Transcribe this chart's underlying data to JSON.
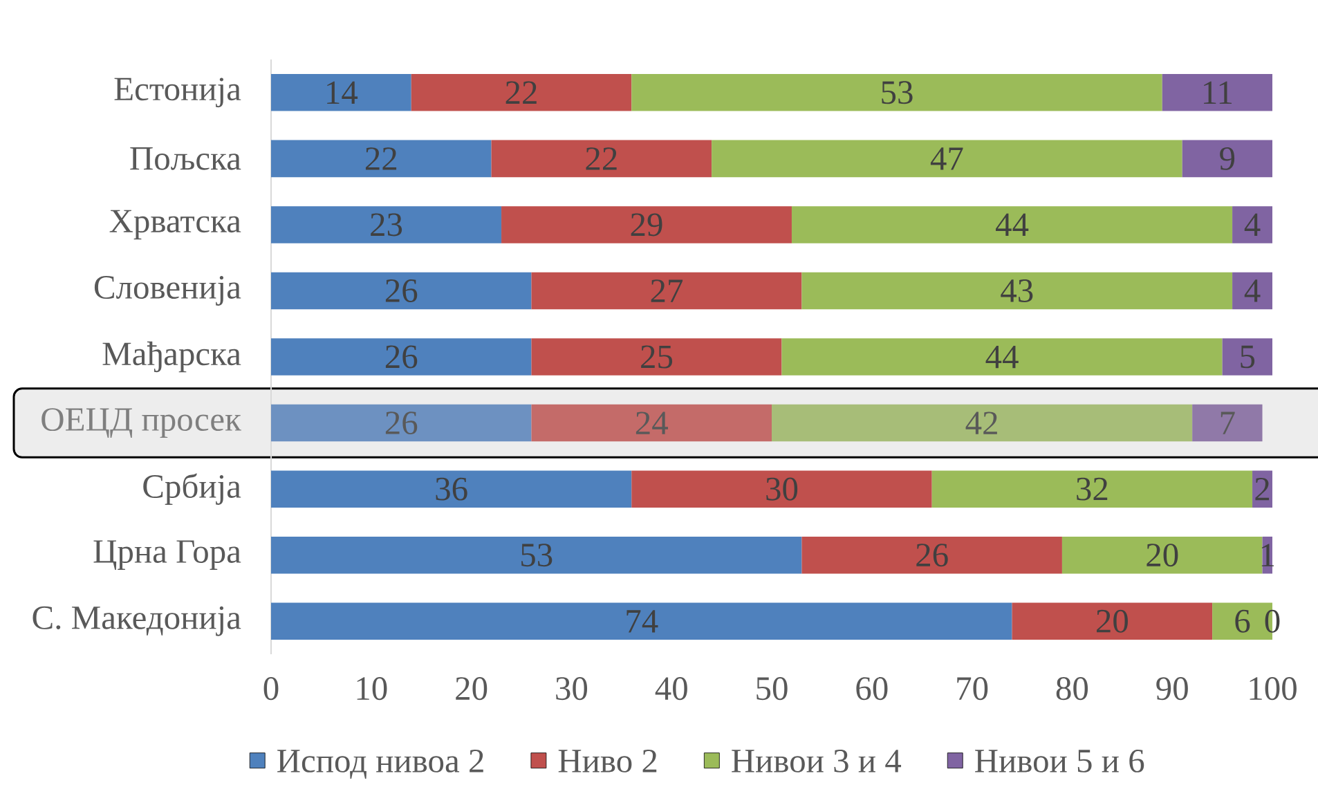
{
  "chart_data": {
    "type": "bar",
    "orientation": "horizontal",
    "stacked": true,
    "categories": [
      "Естонија",
      "Пољска",
      "Хрватска",
      "Словенија",
      "Мађарска",
      "ОЕЦД просек",
      "Србија",
      "Црна Гора",
      "С. Македонија"
    ],
    "series": [
      {
        "name": "Испод нивоа 2",
        "color": "#4f81bd",
        "colors": [
          "#4f81bd",
          "#4f81bd",
          "#4f81bd",
          "#4f81bd",
          "#4f81bd",
          "#6d91c1",
          "#4f81bd",
          "#4f81bd",
          "#4f81bd"
        ],
        "values": [
          14,
          22,
          23,
          26,
          26,
          26,
          36,
          53,
          74
        ]
      },
      {
        "name": "Ниво 2",
        "color": "#c0504d",
        "colors": [
          "#c0504d",
          "#c0504d",
          "#c0504d",
          "#c0504d",
          "#c0504d",
          "#c46b69",
          "#c0504d",
          "#c0504d",
          "#c0504d"
        ],
        "values": [
          22,
          22,
          29,
          27,
          25,
          24,
          30,
          26,
          20
        ]
      },
      {
        "name": "Нивои 3 и 4",
        "color": "#9bbb59",
        "colors": [
          "#9bbb59",
          "#9bbb59",
          "#9bbb59",
          "#9bbb59",
          "#9bbb59",
          "#a7bd78",
          "#9bbb59",
          "#9bbb59",
          "#9bbb59"
        ],
        "values": [
          53,
          47,
          44,
          43,
          44,
          42,
          32,
          20,
          6
        ]
      },
      {
        "name": "Нивои 5 и 6",
        "color": "#8064a2",
        "colors": [
          "#8064a2",
          "#8064a2",
          "#8064a2",
          "#8064a2",
          "#8064a2",
          "#9079a8",
          "#8064a2",
          "#8064a2",
          "#8064a2"
        ],
        "values": [
          11,
          9,
          4,
          4,
          5,
          7,
          2,
          1,
          0
        ]
      }
    ],
    "xlim": [
      0,
      100
    ],
    "xticks": [
      0,
      10,
      20,
      30,
      40,
      50,
      60,
      70,
      80,
      90,
      100
    ],
    "data_labels": true,
    "legend": "bottom",
    "bands": [
      {
        "axis": "y",
        "from": "ОЕЦД просек",
        "to": "ОЕЦД просек",
        "color": "#ededed"
      }
    ]
  }
}
